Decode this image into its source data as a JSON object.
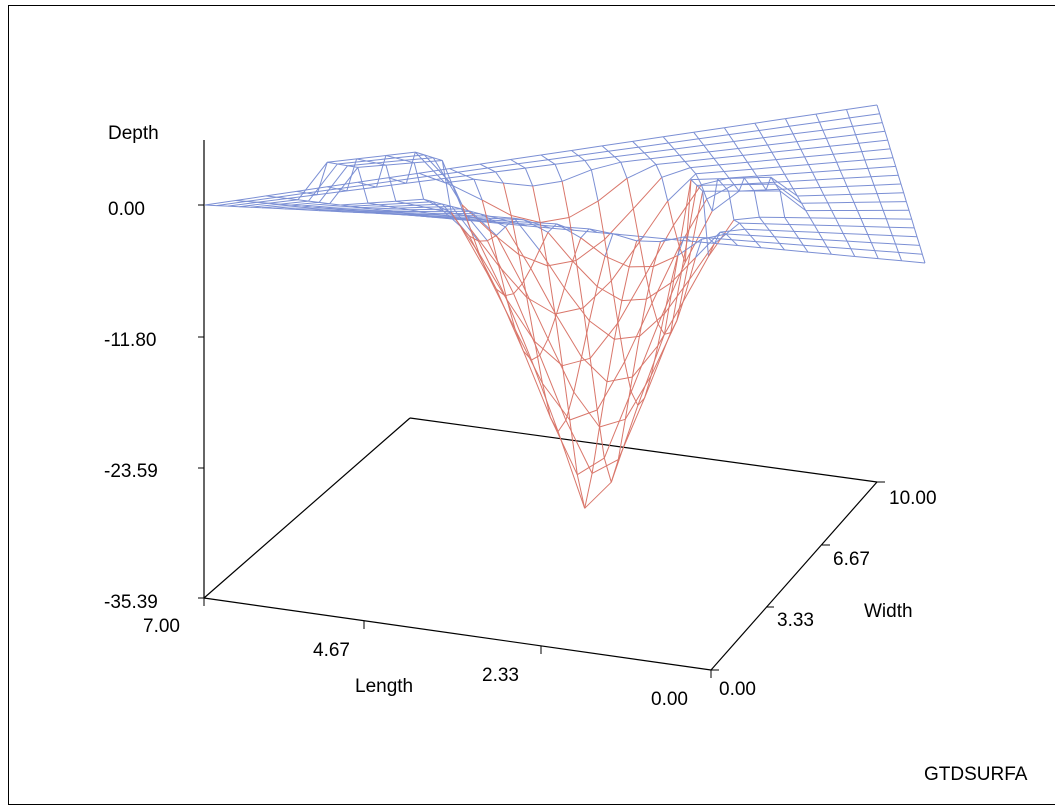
{
  "chart_data": {
    "type": "surface3d",
    "title": "",
    "axes": {
      "z": {
        "label": "Depth",
        "ticks": [
          "0.00",
          "-11.80",
          "-23.59",
          "-35.39"
        ],
        "range": [
          -35.39,
          0.0
        ]
      },
      "length": {
        "label": "Length",
        "ticks": [
          "7.00",
          "4.67",
          "2.33",
          "0.00"
        ],
        "range": [
          0.0,
          7.0
        ]
      },
      "width": {
        "label": "Width",
        "ticks": [
          "0.00",
          "3.33",
          "6.67",
          "10.00"
        ],
        "range": [
          0.0,
          10.0
        ]
      }
    },
    "colors": {
      "above_zero": "#7b8fd4",
      "below_zero": "#d9766a",
      "axes": "#000000"
    },
    "grid_rows": 18,
    "grid_cols": 22,
    "surface": "pit with flat rim at 0.00, deepest point near -25.5 around the center"
  },
  "footer": {
    "text": "GTDSURFA"
  }
}
